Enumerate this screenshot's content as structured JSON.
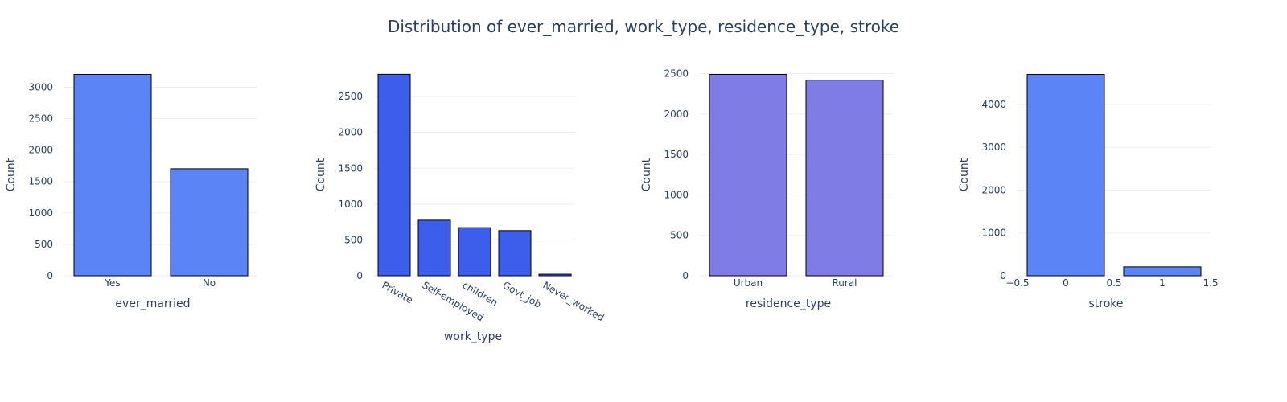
{
  "title": "Distribution of ever_married, work_type, residence_type, stroke",
  "colors": {
    "text": "#2a3f5f",
    "grid": "#ebedf2",
    "bar_outline": "#000000"
  },
  "chart_data": [
    {
      "type": "bar",
      "xlabel": "ever_married",
      "ylabel": "Count",
      "categories": [
        "Yes",
        "No"
      ],
      "values": [
        3204,
        1702
      ],
      "ylim": [
        0,
        3210
      ],
      "yticks": [
        0,
        500,
        1000,
        1500,
        2000,
        2500,
        3000
      ],
      "color": "#5b84f6",
      "x_tick_rotation": 0
    },
    {
      "type": "bar",
      "xlabel": "work_type",
      "ylabel": "Count",
      "categories": [
        "Private",
        "Self-employed",
        "children",
        "Govt_job",
        "Never_worked"
      ],
      "values": [
        2811,
        775,
        671,
        630,
        22
      ],
      "ylim": [
        0,
        2815
      ],
      "yticks": [
        0,
        500,
        1000,
        1500,
        2000,
        2500
      ],
      "color": "#3d5eeb",
      "x_tick_rotation": 30
    },
    {
      "type": "bar",
      "xlabel": "residence_type",
      "ylabel": "Count",
      "categories": [
        "Urban",
        "Rural"
      ],
      "values": [
        2490,
        2419
      ],
      "ylim": [
        0,
        2495
      ],
      "yticks": [
        0,
        500,
        1000,
        1500,
        2000,
        2500
      ],
      "color": "#7f7ce6",
      "x_tick_rotation": 0
    },
    {
      "type": "bar",
      "numeric_x": true,
      "xlabel": "stroke",
      "ylabel": "Count",
      "x": [
        0,
        1
      ],
      "values": [
        4700,
        209
      ],
      "bar_width": 0.8,
      "xlim": [
        -0.5,
        1.5
      ],
      "xticks": [
        -0.5,
        0,
        0.5,
        1,
        1.5
      ],
      "xtick_labels": [
        "−0.5",
        "0",
        "0.5",
        "1",
        "1.5"
      ],
      "ylim": [
        0,
        4710
      ],
      "yticks": [
        0,
        1000,
        2000,
        3000,
        4000
      ],
      "color": "#5b84f6",
      "x_tick_rotation": 0
    }
  ]
}
